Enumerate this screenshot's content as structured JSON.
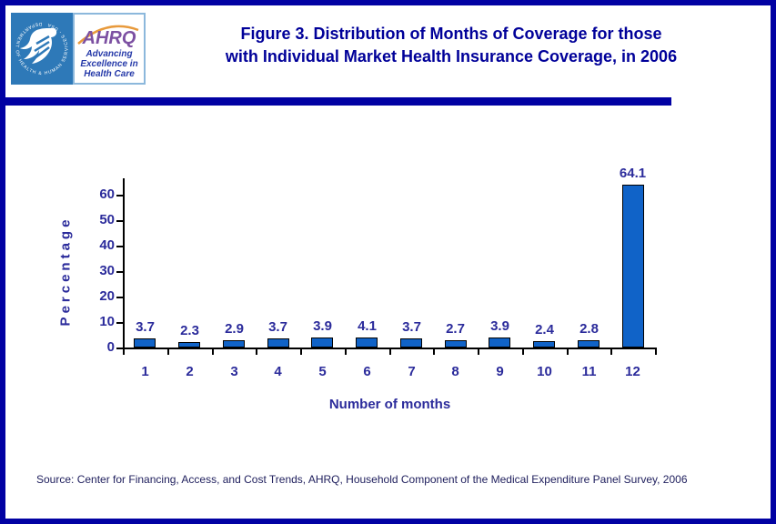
{
  "header": {
    "logo": {
      "hhs_seal_text": "DEPARTMENT OF HEALTH & HUMAN SERVICES - USA",
      "ahrq_acronym": "AHRQ",
      "ahrq_tagline_lines": [
        "Advancing",
        "Excellence in",
        "Health Care"
      ]
    },
    "title_line1": "Figure 3. Distribution of Months of Coverage for those",
    "title_line2": "with Individual Market Health Insurance Coverage, in 2006"
  },
  "chart_data": {
    "type": "bar",
    "title": "Figure 3. Distribution of Months of Coverage for those with Individual Market Health Insurance Coverage, in 2006",
    "categories": [
      "1",
      "2",
      "3",
      "4",
      "5",
      "6",
      "7",
      "8",
      "9",
      "10",
      "11",
      "12"
    ],
    "values": [
      3.7,
      2.3,
      2.9,
      3.7,
      3.9,
      4.1,
      3.7,
      2.7,
      3.9,
      2.4,
      2.8,
      64.1
    ],
    "value_labels": [
      "3.7",
      "2.3",
      "2.9",
      "3.7",
      "3.9",
      "4.1",
      "3.7",
      "2.7",
      "3.9",
      "2.4",
      "2.8",
      "64.1"
    ],
    "xlabel": "Number of months",
    "ylabel": "Percentage",
    "ylim": [
      0,
      65
    ],
    "yticks": [
      0,
      10,
      20,
      30,
      40,
      50,
      60
    ],
    "grid": false,
    "legend": null
  },
  "footer": {
    "source": "Source: Center for Financing, Access, and Cost Trends, AHRQ, Household Component of the Medical Expenditure Panel Survey, 2006"
  },
  "colors": {
    "frame_navy": "#0101A3",
    "title_navy": "#000099",
    "label_navy": "#2B2B9B",
    "bar_fill": "#1063C8",
    "bar_border": "#000000",
    "hhs_blue": "#2E79B8",
    "ahrq_purple": "#7C50A2",
    "arc_orange": "#E89A3C",
    "tagline_blue": "#2438A8",
    "source_text": "#20205E"
  }
}
